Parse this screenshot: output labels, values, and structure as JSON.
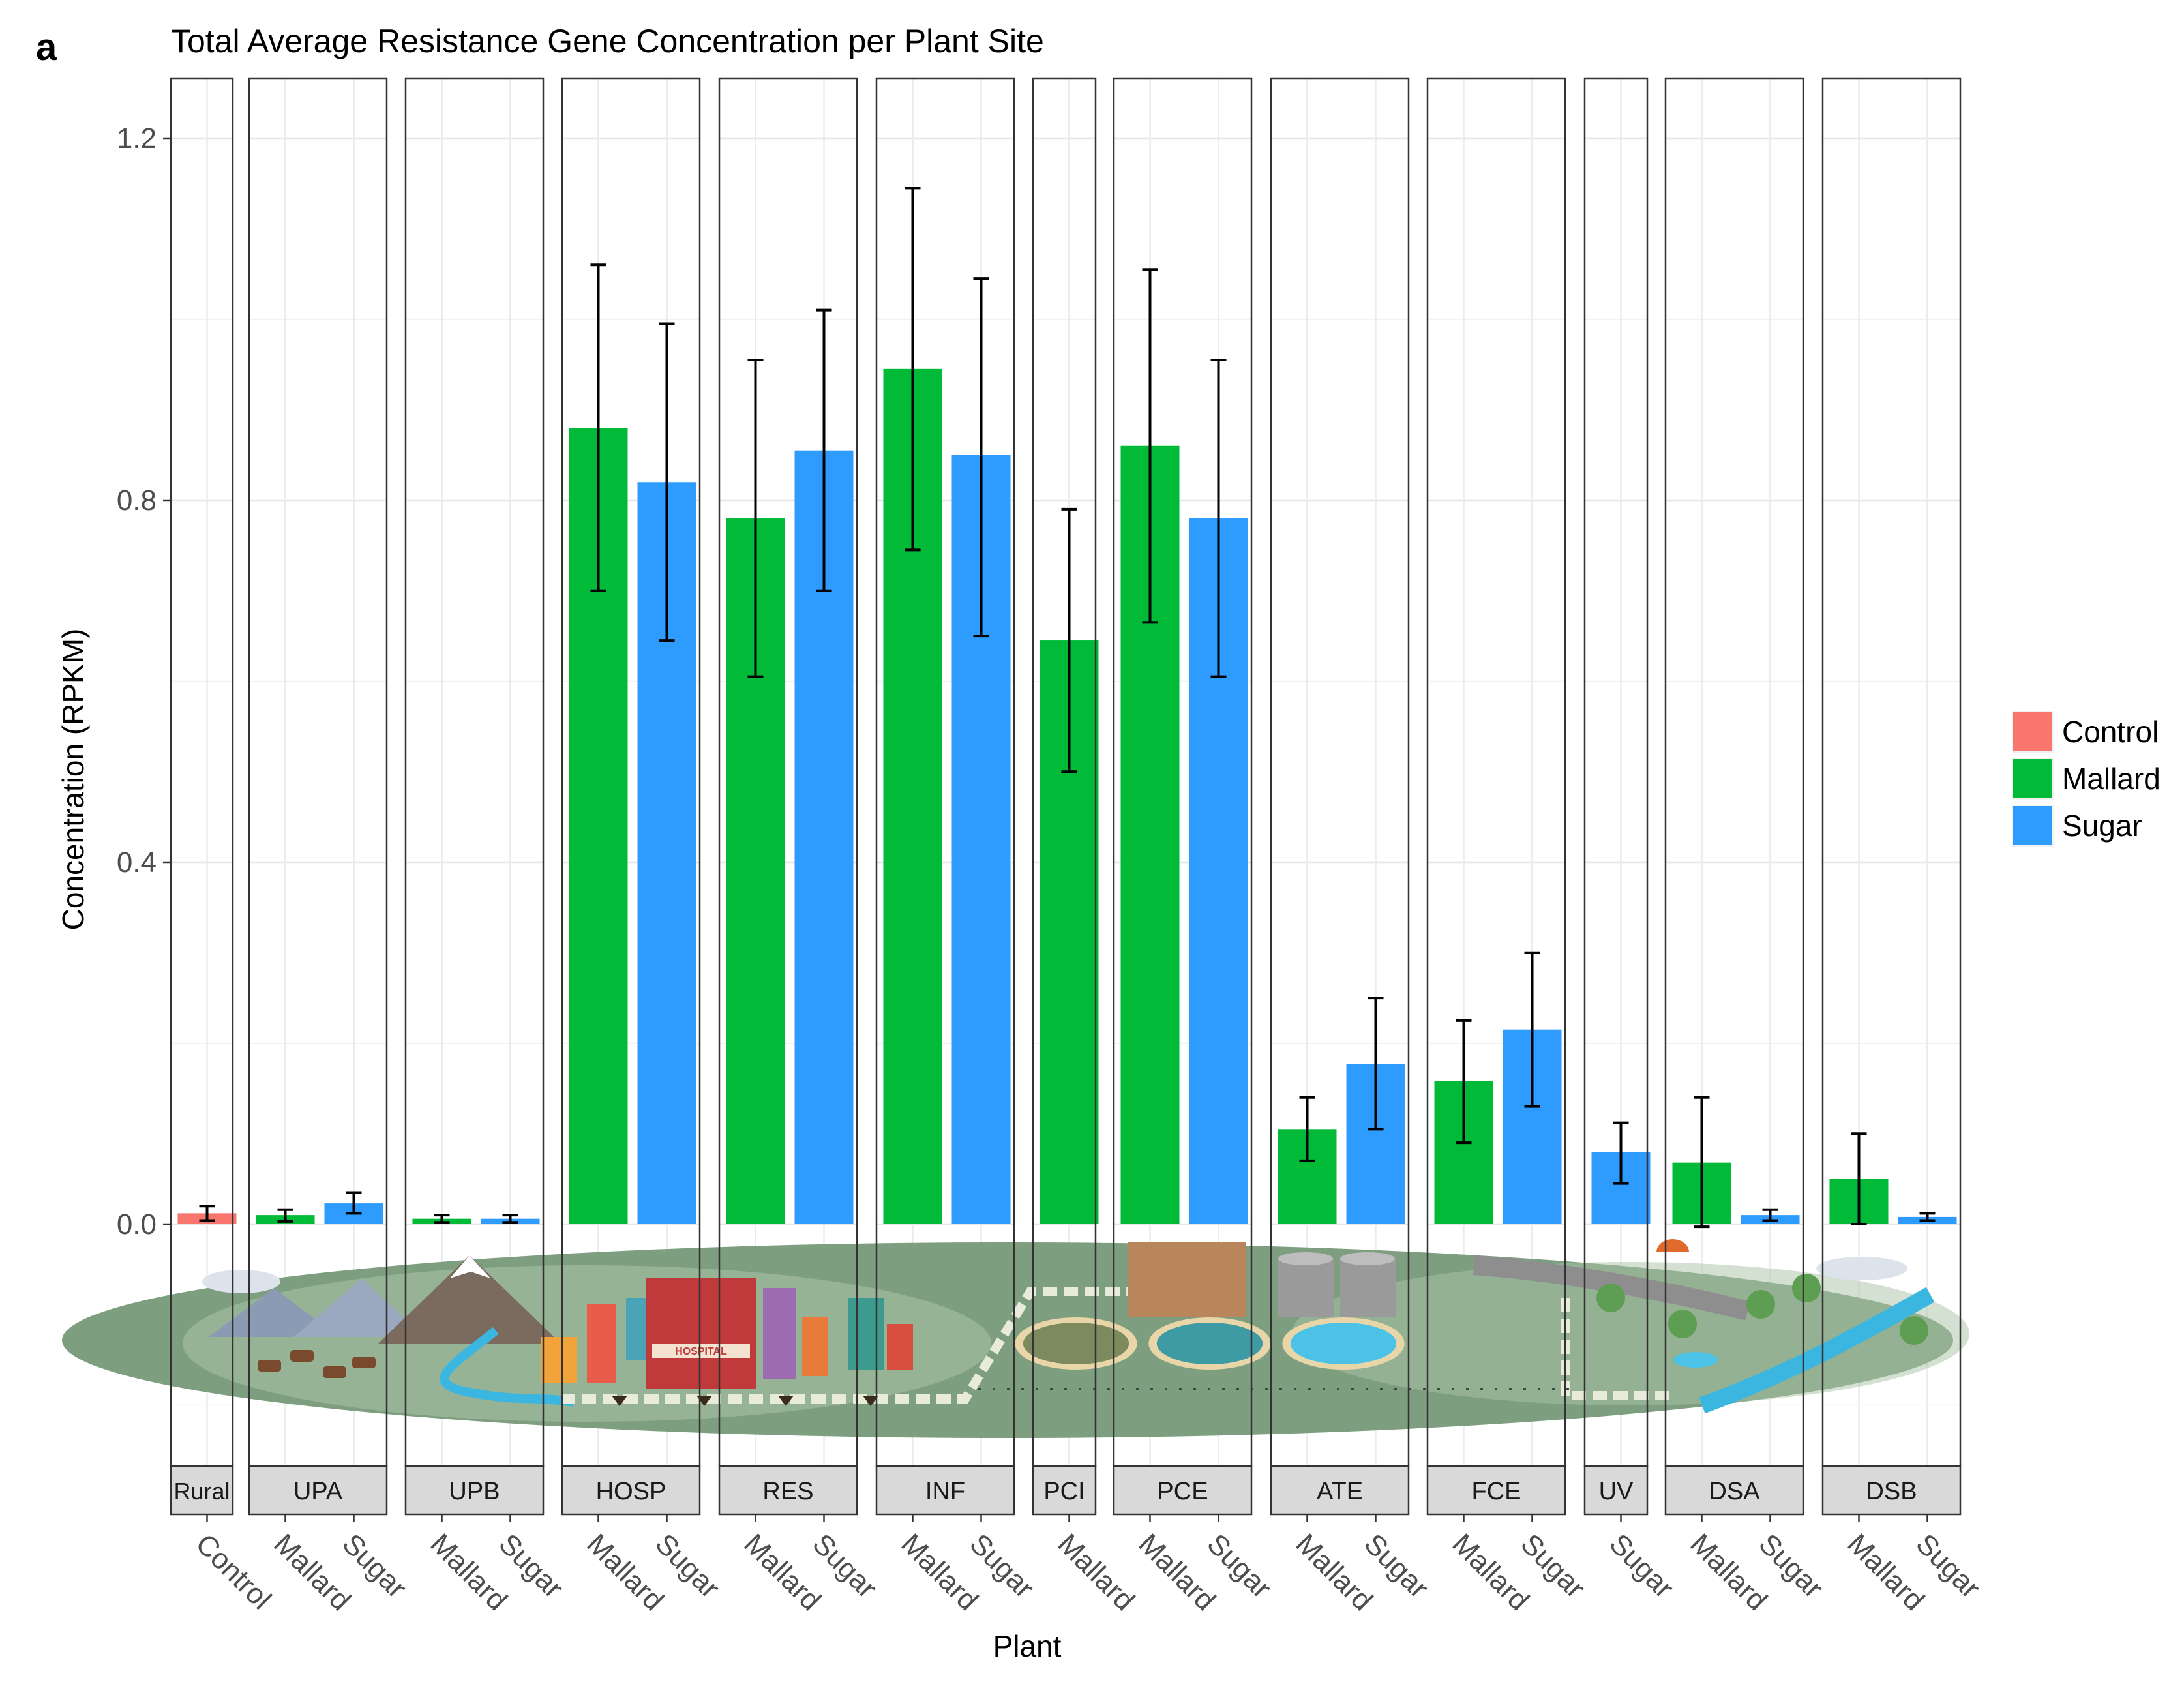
{
  "panel_label": "a",
  "chart_data": {
    "type": "bar",
    "title": "Total Average Resistance Gene Concentration per Plant Site",
    "xlabel": "Plant",
    "ylabel": "Concentration (RPKM)",
    "ylim": [
      -0.27,
      1.27
    ],
    "yticks": [
      0.0,
      0.4,
      0.8,
      1.2
    ],
    "ytick_labels": [
      "0.0",
      "0.4",
      "0.8",
      "1.2"
    ],
    "grid": true,
    "legend_position": "right",
    "legend": [
      {
        "name": "Control",
        "color": "#F8766D"
      },
      {
        "name": "Mallard",
        "color": "#00BA38"
      },
      {
        "name": "Sugar",
        "color": "#2E9BFF"
      }
    ],
    "facets": [
      {
        "label": "Rural",
        "bars": [
          {
            "group": "Control",
            "value": 0.012,
            "err_low": 0.004,
            "err_high": 0.02
          }
        ]
      },
      {
        "label": "UPA",
        "bars": [
          {
            "group": "Mallard",
            "value": 0.01,
            "err_low": 0.003,
            "err_high": 0.016
          },
          {
            "group": "Sugar",
            "value": 0.023,
            "err_low": 0.012,
            "err_high": 0.035
          }
        ]
      },
      {
        "label": "UPB",
        "bars": [
          {
            "group": "Mallard",
            "value": 0.006,
            "err_low": 0.002,
            "err_high": 0.01
          },
          {
            "group": "Sugar",
            "value": 0.006,
            "err_low": 0.002,
            "err_high": 0.01
          }
        ]
      },
      {
        "label": "HOSP",
        "bars": [
          {
            "group": "Mallard",
            "value": 0.88,
            "err_low": 0.7,
            "err_high": 1.06
          },
          {
            "group": "Sugar",
            "value": 0.82,
            "err_low": 0.645,
            "err_high": 0.995
          }
        ]
      },
      {
        "label": "RES",
        "bars": [
          {
            "group": "Mallard",
            "value": 0.78,
            "err_low": 0.605,
            "err_high": 0.955
          },
          {
            "group": "Sugar",
            "value": 0.855,
            "err_low": 0.7,
            "err_high": 1.01
          }
        ]
      },
      {
        "label": "INF",
        "bars": [
          {
            "group": "Mallard",
            "value": 0.945,
            "err_low": 0.745,
            "err_high": 1.145
          },
          {
            "group": "Sugar",
            "value": 0.85,
            "err_low": 0.65,
            "err_high": 1.045
          }
        ]
      },
      {
        "label": "PCI",
        "bars": [
          {
            "group": "Mallard",
            "value": 0.645,
            "err_low": 0.5,
            "err_high": 0.79
          }
        ]
      },
      {
        "label": "PCE",
        "bars": [
          {
            "group": "Mallard",
            "value": 0.86,
            "err_low": 0.665,
            "err_high": 1.055
          },
          {
            "group": "Sugar",
            "value": 0.78,
            "err_low": 0.605,
            "err_high": 0.955
          }
        ]
      },
      {
        "label": "ATE",
        "bars": [
          {
            "group": "Mallard",
            "value": 0.105,
            "err_low": 0.07,
            "err_high": 0.14
          },
          {
            "group": "Sugar",
            "value": 0.177,
            "err_low": 0.105,
            "err_high": 0.25
          }
        ]
      },
      {
        "label": "FCE",
        "bars": [
          {
            "group": "Mallard",
            "value": 0.158,
            "err_low": 0.09,
            "err_high": 0.225
          },
          {
            "group": "Sugar",
            "value": 0.215,
            "err_low": 0.13,
            "err_high": 0.3
          }
        ]
      },
      {
        "label": "UV",
        "bars": [
          {
            "group": "Sugar",
            "value": 0.08,
            "err_low": 0.045,
            "err_high": 0.112
          }
        ]
      },
      {
        "label": "DSA",
        "bars": [
          {
            "group": "Mallard",
            "value": 0.068,
            "err_low": -0.003,
            "err_high": 0.14
          },
          {
            "group": "Sugar",
            "value": 0.01,
            "err_low": 0.004,
            "err_high": 0.016
          }
        ]
      },
      {
        "label": "DSB",
        "bars": [
          {
            "group": "Mallard",
            "value": 0.05,
            "err_low": 0.0,
            "err_high": 0.1
          },
          {
            "group": "Sugar",
            "value": 0.008,
            "err_low": 0.004,
            "err_high": 0.012
          }
        ]
      }
    ]
  },
  "illustration": {
    "building_sign": "HOSPITAL",
    "colors": {
      "ground": "#7E9E80",
      "ground_light": "#A9C4A6",
      "path": "#E8EBD9",
      "water": "#3BB6E0",
      "mountain": "#7B6A5E",
      "hospital": "#C0393B",
      "tank": "#4CC3E6",
      "building": "#B8865A",
      "fence": "#3E4A40"
    }
  }
}
